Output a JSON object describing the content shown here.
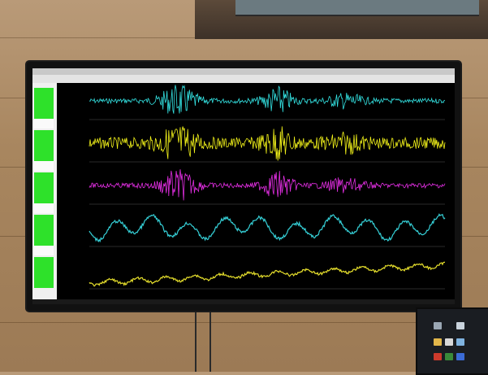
{
  "photo": {
    "description_colors": {
      "channel_1": "#33e0e0",
      "channel_2": "#f2f21a",
      "channel_3": "#e22ee2",
      "channel_4": "#35cfd6",
      "channel_5": "#e6df2c",
      "status_green": "#2ee12a"
    }
  },
  "screen": {
    "channels": [
      {
        "label": "",
        "color": "#33e0e0"
      },
      {
        "label": "",
        "color": "#f2f21a"
      },
      {
        "label": "",
        "color": "#e22ee2"
      },
      {
        "label": "",
        "color": "#35cfd6"
      },
      {
        "label": "",
        "color": "#e6df2c"
      }
    ]
  }
}
